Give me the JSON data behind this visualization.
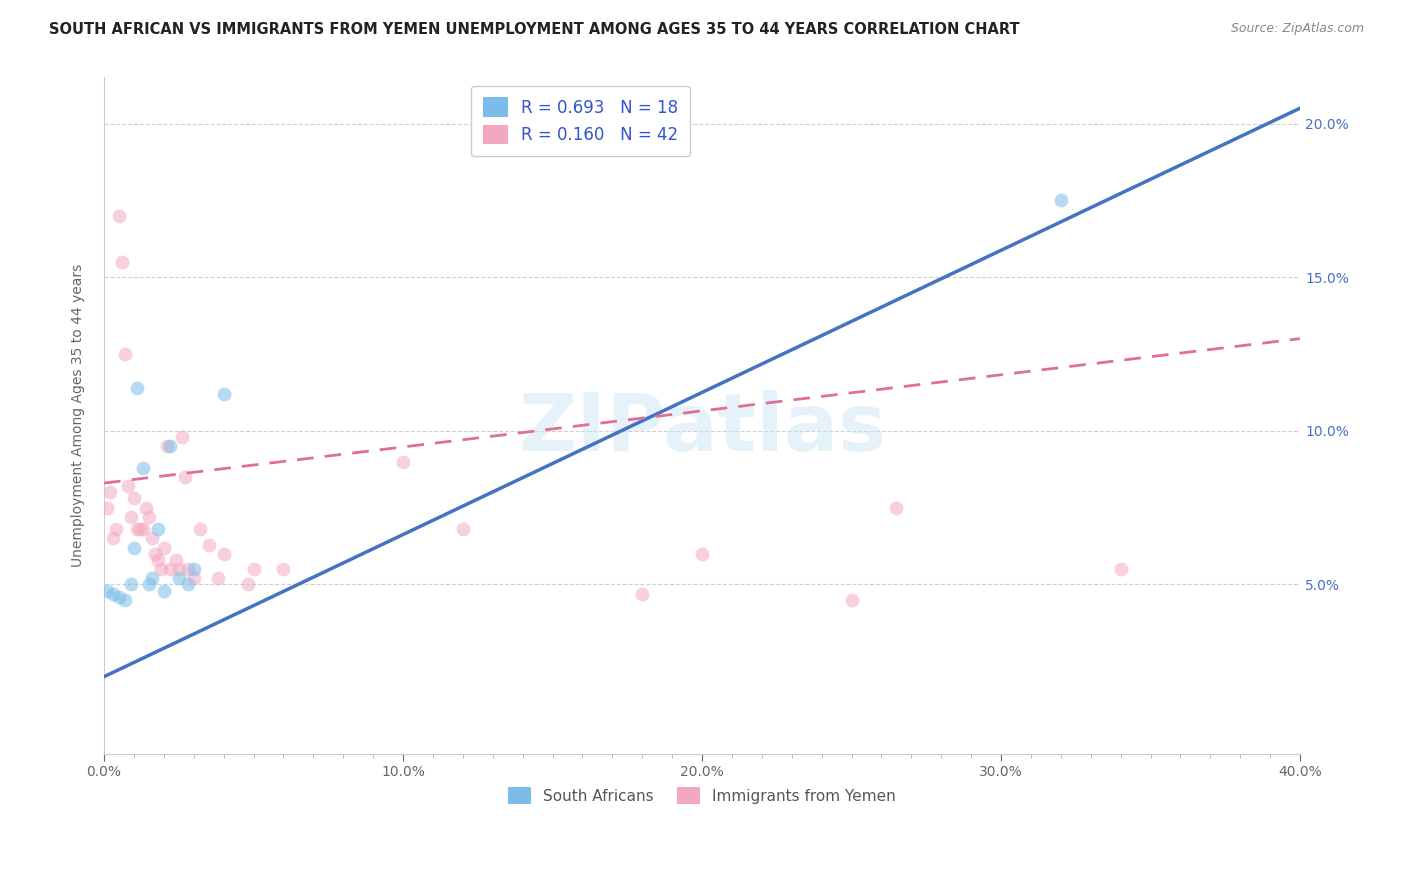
{
  "title": "SOUTH AFRICAN VS IMMIGRANTS FROM YEMEN UNEMPLOYMENT AMONG AGES 35 TO 44 YEARS CORRELATION CHART",
  "source": "Source: ZipAtlas.com",
  "ylabel": "Unemployment Among Ages 35 to 44 years",
  "xlim": [
    0.0,
    0.4
  ],
  "ylim": [
    -0.005,
    0.215
  ],
  "xlabel_major_ticks": [
    0.0,
    0.1,
    0.2,
    0.3,
    0.4
  ],
  "xlabel_minor_ticks": [
    0.01,
    0.02,
    0.03,
    0.04,
    0.05,
    0.06,
    0.07,
    0.08,
    0.09,
    0.11,
    0.12,
    0.13,
    0.14,
    0.15,
    0.16,
    0.17,
    0.18,
    0.19,
    0.21,
    0.22,
    0.23,
    0.24,
    0.25,
    0.26,
    0.27,
    0.28,
    0.29,
    0.31,
    0.32,
    0.33,
    0.34,
    0.35,
    0.36,
    0.37,
    0.38,
    0.39
  ],
  "ylabel_ticks": [
    0.05,
    0.1,
    0.15,
    0.2
  ],
  "legend_entries": [
    {
      "r": "0.693",
      "n": "18"
    },
    {
      "r": "0.160",
      "n": "42"
    }
  ],
  "legend_bottom": [
    "South Africans",
    "Immigrants from Yemen"
  ],
  "blue_scatter_x": [
    0.001,
    0.003,
    0.005,
    0.007,
    0.009,
    0.01,
    0.011,
    0.013,
    0.015,
    0.016,
    0.018,
    0.02,
    0.022,
    0.025,
    0.028,
    0.03,
    0.04,
    0.32
  ],
  "blue_scatter_y": [
    0.048,
    0.047,
    0.046,
    0.045,
    0.05,
    0.062,
    0.114,
    0.088,
    0.05,
    0.052,
    0.068,
    0.048,
    0.095,
    0.052,
    0.05,
    0.055,
    0.112,
    0.175
  ],
  "pink_scatter_x": [
    0.001,
    0.002,
    0.003,
    0.004,
    0.005,
    0.006,
    0.007,
    0.008,
    0.009,
    0.01,
    0.011,
    0.012,
    0.013,
    0.014,
    0.015,
    0.016,
    0.017,
    0.018,
    0.019,
    0.02,
    0.021,
    0.022,
    0.024,
    0.025,
    0.026,
    0.027,
    0.028,
    0.03,
    0.032,
    0.035,
    0.038,
    0.04,
    0.048,
    0.05,
    0.06,
    0.1,
    0.12,
    0.18,
    0.2,
    0.25,
    0.265,
    0.34
  ],
  "pink_scatter_y": [
    0.075,
    0.08,
    0.065,
    0.068,
    0.17,
    0.155,
    0.125,
    0.082,
    0.072,
    0.078,
    0.068,
    0.068,
    0.068,
    0.075,
    0.072,
    0.065,
    0.06,
    0.058,
    0.055,
    0.062,
    0.095,
    0.055,
    0.058,
    0.055,
    0.098,
    0.085,
    0.055,
    0.052,
    0.068,
    0.063,
    0.052,
    0.06,
    0.05,
    0.055,
    0.055,
    0.09,
    0.068,
    0.047,
    0.06,
    0.045,
    0.075,
    0.055
  ],
  "blue_line_x": [
    0.0,
    0.4
  ],
  "blue_line_y": [
    0.02,
    0.205
  ],
  "pink_line_x": [
    0.0,
    0.4
  ],
  "pink_line_y": [
    0.083,
    0.13
  ],
  "scatter_size": 100,
  "scatter_alpha": 0.55,
  "blue_color": "#7bbde8",
  "pink_color": "#f4a8c0",
  "blue_line_color": "#4472c4",
  "pink_line_color": "#e07090",
  "background_color": "#ffffff",
  "grid_color": "#d0d0d0",
  "watermark": "ZIPatlas",
  "title_fontsize": 10.5,
  "tick_fontsize": 10,
  "label_fontsize": 10,
  "right_tick_color": "#4472c4"
}
